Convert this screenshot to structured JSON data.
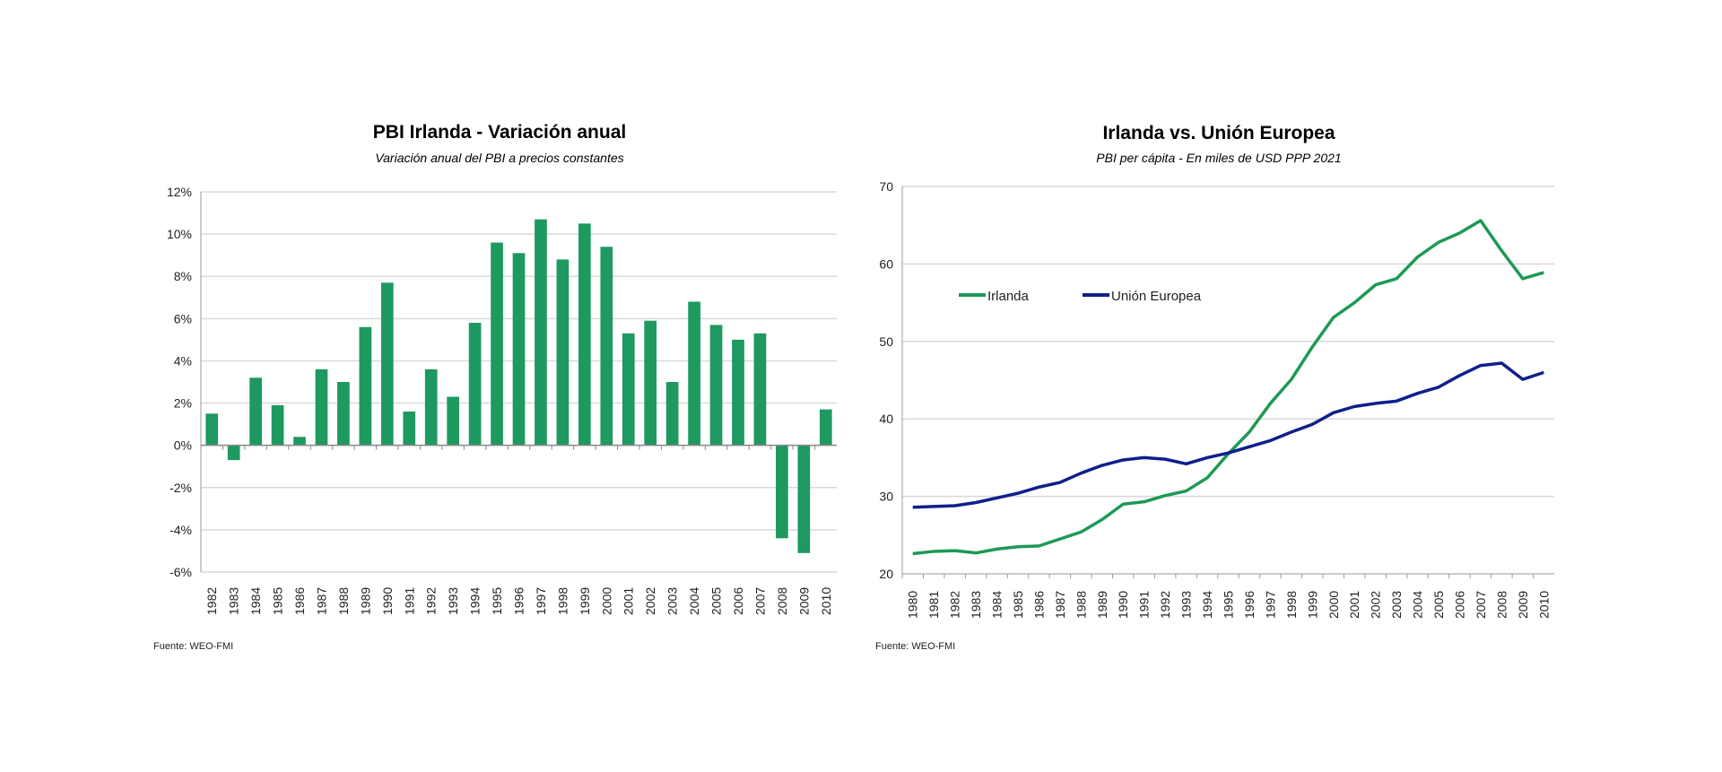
{
  "chart_data": [
    {
      "type": "bar",
      "title": "PBI Irlanda - Variación anual",
      "subtitle": "Variación anual del PBI a precios constantes",
      "source": "Fuente: WEO-FMI",
      "categories": [
        "1982",
        "1983",
        "1984",
        "1985",
        "1986",
        "1987",
        "1988",
        "1989",
        "1990",
        "1991",
        "1992",
        "1993",
        "1994",
        "1995",
        "1996",
        "1997",
        "1998",
        "1999",
        "2000",
        "2001",
        "2002",
        "2003",
        "2004",
        "2005",
        "2006",
        "2007",
        "2008",
        "2009",
        "2010"
      ],
      "values": [
        1.5,
        -0.7,
        3.2,
        1.9,
        0.4,
        3.6,
        3.0,
        5.6,
        7.7,
        1.6,
        3.6,
        2.3,
        5.8,
        9.6,
        9.1,
        10.7,
        8.8,
        10.5,
        9.4,
        5.3,
        5.9,
        3.0,
        6.8,
        5.7,
        5.0,
        5.3,
        -4.4,
        -5.1,
        1.7
      ],
      "ylim": [
        -6,
        12
      ],
      "yticks": [
        "-6%",
        "-4%",
        "-2%",
        "0%",
        "2%",
        "4%",
        "6%",
        "8%",
        "10%",
        "12%"
      ],
      "grid": true,
      "color": "#1e9960"
    },
    {
      "type": "line",
      "title": "Irlanda vs. Unión Europea",
      "subtitle": "PBI per cápita - En miles de USD PPP 2021",
      "source": "Fuente: WEO-FMI",
      "x": [
        "1980",
        "1981",
        "1982",
        "1983",
        "1984",
        "1985",
        "1986",
        "1987",
        "1988",
        "1989",
        "1990",
        "1991",
        "1992",
        "1993",
        "1994",
        "1995",
        "1996",
        "1997",
        "1998",
        "1999",
        "2000",
        "2001",
        "2002",
        "2003",
        "2004",
        "2005",
        "2006",
        "2007",
        "2008",
        "2009",
        "2010"
      ],
      "series": [
        {
          "name": "Irlanda",
          "color": "#1d9a55",
          "values": [
            22.6,
            22.9,
            23.0,
            22.7,
            23.2,
            23.5,
            23.6,
            24.5,
            25.4,
            27.0,
            29.0,
            29.3,
            30.1,
            30.7,
            32.4,
            35.5,
            38.3,
            42.0,
            45.1,
            49.3,
            53.1,
            55.0,
            57.3,
            58.1,
            60.9,
            62.8,
            64.0,
            65.6,
            61.7,
            58.1,
            58.9
          ]
        },
        {
          "name": "Unión Europea",
          "color": "#0f1f8a",
          "values": [
            28.6,
            28.7,
            28.8,
            29.2,
            29.8,
            30.4,
            31.2,
            31.8,
            33.0,
            34.0,
            34.7,
            35.0,
            34.8,
            34.2,
            35.0,
            35.6,
            36.4,
            37.2,
            38.3,
            39.3,
            40.8,
            41.6,
            42.0,
            42.3,
            43.3,
            44.1,
            45.6,
            46.9,
            47.2,
            45.1,
            46.0
          ]
        }
      ],
      "ylim": [
        20,
        70
      ],
      "yticks": [
        "20",
        "30",
        "40",
        "50",
        "60",
        "70"
      ],
      "grid": true,
      "legend": "inside-left"
    }
  ]
}
